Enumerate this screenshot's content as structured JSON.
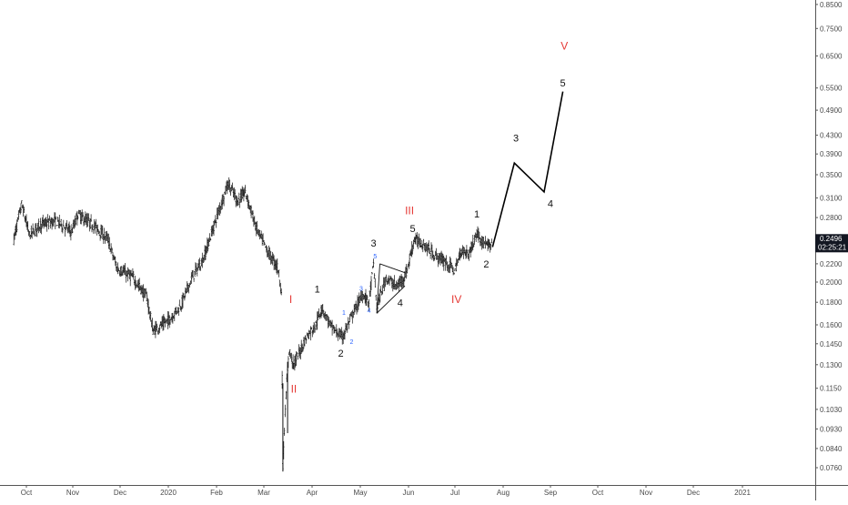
{
  "chart_data": {
    "type": "candlestick",
    "scale": "log",
    "grid": false,
    "x_ticks": [
      "Oct",
      "Nov",
      "Dec",
      "2020",
      "Feb",
      "Mar",
      "Apr",
      "May",
      "Jun",
      "Jul",
      "Aug",
      "Sep",
      "Oct",
      "Nov",
      "Dec",
      "2021"
    ],
    "y_ticks": [
      "0.8500",
      "0.7500",
      "0.6500",
      "0.5500",
      "0.4900",
      "0.4300",
      "0.3900",
      "0.3500",
      "0.3100",
      "0.2800",
      "0.2496",
      "0.2200",
      "0.2000",
      "0.1800",
      "0.1600",
      "0.1450",
      "0.1300",
      "0.1150",
      "0.1030",
      "0.0930",
      "0.0840",
      "0.0760"
    ],
    "ylim": [
      0.0715,
      0.9
    ],
    "price_label": {
      "value": "0.2496",
      "countdown": "02:25:21",
      "color": "#131722"
    },
    "price_path": [
      [
        "2019-09-23",
        0.25
      ],
      [
        "2019-09-28",
        0.3
      ],
      [
        "2019-10-03",
        0.255
      ],
      [
        "2019-10-10",
        0.27
      ],
      [
        "2019-10-20",
        0.275
      ],
      [
        "2019-10-30",
        0.26
      ],
      [
        "2019-11-03",
        0.285
      ],
      [
        "2019-11-15",
        0.265
      ],
      [
        "2019-11-22",
        0.25
      ],
      [
        "2019-11-28",
        0.215
      ],
      [
        "2019-12-08",
        0.205
      ],
      [
        "2019-12-17",
        0.185
      ],
      [
        "2019-12-21",
        0.155
      ],
      [
        "2020-01-01",
        0.165
      ],
      [
        "2020-01-08",
        0.178
      ],
      [
        "2020-01-15",
        0.205
      ],
      [
        "2020-01-22",
        0.225
      ],
      [
        "2020-02-01",
        0.29
      ],
      [
        "2020-02-07",
        0.335
      ],
      [
        "2020-02-13",
        0.305
      ],
      [
        "2020-02-18",
        0.32
      ],
      [
        "2020-02-25",
        0.265
      ],
      [
        "2020-03-03",
        0.235
      ],
      [
        "2020-03-10",
        0.215
      ],
      [
        "2020-03-12",
        0.19
      ],
      [
        "2020-03-13",
        0.076
      ],
      [
        "2020-03-15",
        0.112
      ],
      [
        "2020-03-17",
        0.14
      ],
      [
        "2020-03-20",
        0.13
      ],
      [
        "2020-03-28",
        0.15
      ],
      [
        "2020-04-03",
        0.16
      ],
      [
        "2020-04-07",
        0.175
      ],
      [
        "2020-04-13",
        0.158
      ],
      [
        "2020-04-20",
        0.15
      ],
      [
        "2020-04-27",
        0.17
      ],
      [
        "2020-05-03",
        0.188
      ],
      [
        "2020-05-07",
        0.18
      ],
      [
        "2020-05-10",
        0.22
      ],
      [
        "2020-05-12",
        0.175
      ],
      [
        "2020-05-18",
        0.205
      ],
      [
        "2020-05-25",
        0.195
      ],
      [
        "2020-05-31",
        0.21
      ],
      [
        "2020-06-05",
        0.25
      ],
      [
        "2020-06-10",
        0.245
      ],
      [
        "2020-06-18",
        0.23
      ],
      [
        "2020-06-25",
        0.222
      ],
      [
        "2020-07-01",
        0.212
      ],
      [
        "2020-07-05",
        0.236
      ],
      [
        "2020-07-10",
        0.232
      ],
      [
        "2020-07-15",
        0.258
      ],
      [
        "2020-07-21",
        0.242
      ],
      [
        "2020-07-25",
        0.24
      ]
    ],
    "projection": [
      [
        "2020-07-25",
        0.24
      ],
      [
        "2020-08-08",
        0.372
      ],
      [
        "2020-08-27",
        0.32
      ],
      [
        "2020-09-08",
        0.54
      ]
    ],
    "triangle": {
      "upper": [
        [
          "2020-05-14",
          0.22
        ],
        [
          "2020-05-30",
          0.21
        ]
      ],
      "lower": [
        [
          "2020-05-12",
          0.17
        ],
        [
          "2020-05-30",
          0.196
        ]
      ],
      "left": [
        [
          "2020-05-12",
          0.17
        ],
        [
          "2020-05-14",
          0.22
        ]
      ]
    },
    "annotations": [
      {
        "text": "I",
        "date": "2020-03-18",
        "price": 0.182,
        "color": "red"
      },
      {
        "text": "II",
        "date": "2020-03-20",
        "price": 0.114,
        "color": "red"
      },
      {
        "text": "III",
        "date": "2020-06-02",
        "price": 0.289,
        "color": "red"
      },
      {
        "text": "IV",
        "date": "2020-07-02",
        "price": 0.182,
        "color": "red"
      },
      {
        "text": "V",
        "date": "2020-09-09",
        "price": 0.682,
        "color": "red"
      },
      {
        "text": "1",
        "date": "2020-04-04",
        "price": 0.192,
        "color": "black"
      },
      {
        "text": "2",
        "date": "2020-04-19",
        "price": 0.1375,
        "color": "black"
      },
      {
        "text": "3",
        "date": "2020-05-10",
        "price": 0.244,
        "color": "black"
      },
      {
        "text": "4",
        "date": "2020-05-27",
        "price": 0.179,
        "color": "black"
      },
      {
        "text": "5",
        "date": "2020-06-04",
        "price": 0.263,
        "color": "black"
      },
      {
        "text": "1",
        "date": "2020-07-15",
        "price": 0.284,
        "color": "black"
      },
      {
        "text": "2",
        "date": "2020-07-21",
        "price": 0.219,
        "color": "black"
      },
      {
        "text": "3",
        "date": "2020-08-09",
        "price": 0.422,
        "color": "black"
      },
      {
        "text": "4",
        "date": "2020-08-31",
        "price": 0.3,
        "color": "black"
      },
      {
        "text": "5",
        "date": "2020-09-08",
        "price": 0.562,
        "color": "black"
      },
      {
        "text": "1",
        "date": "2020-04-21",
        "price": 0.17,
        "color": "blue"
      },
      {
        "text": "2",
        "date": "2020-04-26",
        "price": 0.146,
        "color": "blue"
      },
      {
        "text": "3",
        "date": "2020-05-02",
        "price": 0.193,
        "color": "blue"
      },
      {
        "text": "4",
        "date": "2020-05-07",
        "price": 0.172,
        "color": "blue"
      },
      {
        "text": "5",
        "date": "2020-05-11",
        "price": 0.228,
        "color": "blue"
      }
    ]
  }
}
